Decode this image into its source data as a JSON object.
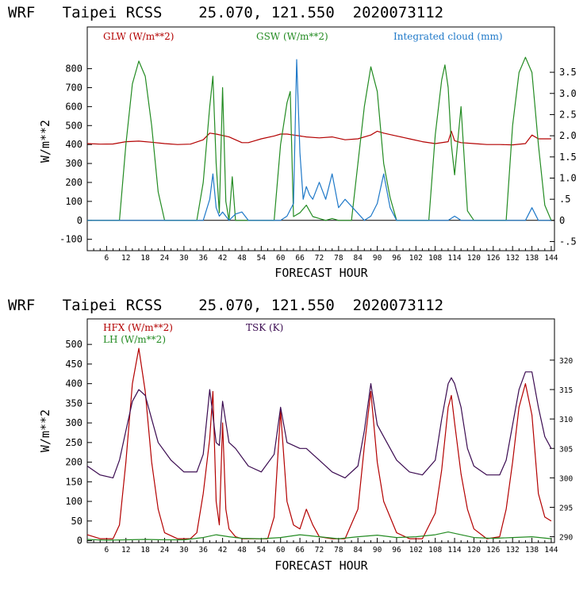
{
  "colors": {
    "glw": "#b30000",
    "gsw": "#238b22",
    "cloud": "#1e78c8",
    "hfx": "#b30000",
    "lh": "#238b22",
    "tsk": "#3a0a50",
    "axis": "#000000"
  },
  "chart_data": [
    {
      "type": "line",
      "title": "WRF   Taipei RCSS    25.070, 121.550  2020073112",
      "xlabel": "FORECAST HOUR",
      "ylabel": "W/m**2",
      "xlim": [
        0,
        145
      ],
      "ylim": [
        -160,
        1020
      ],
      "y2lim": [
        -0.715,
        4.57
      ],
      "xticks": [
        6,
        12,
        18,
        24,
        30,
        36,
        42,
        48,
        54,
        60,
        66,
        72,
        78,
        84,
        90,
        96,
        102,
        108,
        114,
        120,
        126,
        132,
        138,
        144
      ],
      "yticks": [
        -100,
        0,
        100,
        200,
        300,
        400,
        500,
        600,
        700,
        800
      ],
      "y2ticks": [
        -0.5,
        0,
        0.5,
        1.0,
        1.5,
        2.0,
        2.5,
        3.0,
        3.5
      ],
      "y2tick_labels": [
        "-.5",
        "0",
        ".5",
        "1.0",
        "1.5",
        "2.0",
        "2.5",
        "3.0",
        "3.5"
      ],
      "series": [
        {
          "name": "GLW (W/m**2)",
          "axis": "left",
          "color_key": "glw",
          "x": [
            0,
            4,
            8,
            12,
            16,
            20,
            24,
            28,
            32,
            36,
            38,
            40,
            44,
            48,
            50,
            52,
            54,
            58,
            60,
            62,
            64,
            66,
            68,
            72,
            76,
            80,
            84,
            88,
            90,
            92,
            96,
            100,
            104,
            108,
            112,
            113,
            114,
            116,
            120,
            124,
            128,
            132,
            136,
            138,
            140,
            144
          ],
          "values": [
            405,
            402,
            403,
            415,
            418,
            412,
            405,
            400,
            402,
            425,
            460,
            455,
            440,
            410,
            410,
            420,
            430,
            445,
            455,
            455,
            450,
            445,
            440,
            435,
            440,
            425,
            430,
            450,
            470,
            460,
            445,
            430,
            415,
            405,
            415,
            470,
            420,
            410,
            405,
            400,
            400,
            398,
            405,
            450,
            430,
            430
          ]
        },
        {
          "name": "GSW (W/m**2)",
          "axis": "left",
          "color_key": "gsw",
          "x": [
            0,
            10,
            12,
            14,
            16,
            18,
            20,
            22,
            24,
            34,
            36,
            38,
            39,
            40,
            41,
            42,
            43,
            44,
            45,
            46,
            58,
            60,
            62,
            63,
            64,
            66,
            68,
            70,
            72,
            74,
            76,
            78,
            82,
            84,
            86,
            88,
            90,
            92,
            94,
            96,
            106,
            108,
            110,
            111,
            112,
            113,
            114,
            116,
            118,
            120,
            130,
            132,
            134,
            136,
            138,
            140,
            142,
            144
          ],
          "values": [
            0,
            0,
            400,
            720,
            840,
            760,
            500,
            150,
            0,
            0,
            200,
            600,
            760,
            300,
            40,
            700,
            100,
            0,
            230,
            0,
            0,
            400,
            620,
            680,
            20,
            40,
            80,
            20,
            10,
            0,
            10,
            0,
            0,
            300,
            600,
            810,
            680,
            300,
            120,
            0,
            0,
            450,
            740,
            820,
            700,
            400,
            240,
            600,
            50,
            0,
            0,
            500,
            780,
            860,
            780,
            400,
            80,
            0
          ]
        },
        {
          "name": "Integrated cloud (mm)",
          "axis": "right",
          "color_key": "cloud",
          "x": [
            0,
            36,
            38,
            39,
            40,
            41,
            42,
            44,
            46,
            48,
            50,
            52,
            54,
            60,
            62,
            64,
            65,
            66,
            67,
            68,
            69,
            70,
            72,
            74,
            76,
            78,
            80,
            86,
            88,
            90,
            92,
            94,
            96,
            112,
            114,
            116,
            136,
            138,
            140,
            144
          ],
          "values": [
            0,
            0,
            0.5,
            1.1,
            0.3,
            0.1,
            0.2,
            0,
            0.15,
            0.2,
            0,
            0,
            0,
            0,
            0.1,
            0.4,
            3.8,
            1.6,
            0.5,
            0.8,
            0.6,
            0.5,
            0.9,
            0.5,
            1.1,
            0.3,
            0.5,
            0,
            0.1,
            0.4,
            1.1,
            0.3,
            0,
            0,
            0.1,
            0,
            0,
            0.3,
            0,
            0
          ]
        }
      ]
    },
    {
      "type": "line",
      "title": "WRF   Taipei RCSS    25.070, 121.550  2020073112",
      "xlabel": "FORECAST HOUR",
      "ylabel": "W/m**2",
      "xlim": [
        0,
        145
      ],
      "ylim": [
        -5,
        565
      ],
      "y2lim": [
        289,
        327
      ],
      "xticks": [
        6,
        12,
        18,
        24,
        30,
        36,
        42,
        48,
        54,
        60,
        66,
        72,
        78,
        84,
        90,
        96,
        102,
        108,
        114,
        120,
        126,
        132,
        138,
        144
      ],
      "yticks": [
        0,
        50,
        100,
        150,
        200,
        250,
        300,
        350,
        400,
        450,
        500
      ],
      "y2ticks": [
        290,
        295,
        300,
        305,
        310,
        315,
        320
      ],
      "series": [
        {
          "name": "HFX (W/m**2)",
          "axis": "left",
          "color_key": "hfx",
          "x": [
            0,
            4,
            8,
            10,
            12,
            14,
            16,
            18,
            20,
            22,
            24,
            28,
            32,
            34,
            36,
            38,
            39,
            40,
            41,
            42,
            43,
            44,
            46,
            48,
            52,
            56,
            58,
            60,
            62,
            64,
            66,
            68,
            70,
            72,
            76,
            80,
            84,
            86,
            88,
            90,
            92,
            96,
            100,
            104,
            108,
            110,
            112,
            113,
            114,
            116,
            118,
            120,
            124,
            128,
            130,
            132,
            134,
            136,
            138,
            140,
            142,
            144
          ],
          "values": [
            15,
            5,
            5,
            40,
            200,
            400,
            490,
            380,
            200,
            80,
            20,
            5,
            5,
            20,
            120,
            260,
            380,
            100,
            40,
            300,
            80,
            30,
            10,
            5,
            5,
            5,
            60,
            330,
            100,
            40,
            30,
            80,
            40,
            10,
            5,
            5,
            80,
            240,
            380,
            200,
            100,
            20,
            5,
            5,
            70,
            180,
            340,
            370,
            300,
            170,
            80,
            30,
            5,
            10,
            80,
            200,
            340,
            400,
            320,
            120,
            60,
            50
          ]
        },
        {
          "name": "LH (W/m**2)",
          "axis": "left",
          "color_key": "lh",
          "x": [
            0,
            6,
            12,
            18,
            24,
            30,
            36,
            40,
            44,
            48,
            54,
            60,
            66,
            72,
            78,
            84,
            90,
            96,
            102,
            108,
            112,
            116,
            120,
            126,
            132,
            138,
            144
          ],
          "values": [
            3,
            1,
            2,
            3,
            2,
            2,
            8,
            15,
            10,
            6,
            5,
            8,
            15,
            10,
            5,
            10,
            14,
            8,
            10,
            15,
            22,
            15,
            8,
            6,
            8,
            10,
            5
          ]
        },
        {
          "name": "TSK (K)",
          "axis": "right",
          "color_key": "tsk",
          "x": [
            0,
            4,
            8,
            10,
            12,
            14,
            16,
            18,
            20,
            22,
            26,
            30,
            34,
            36,
            38,
            40,
            41,
            42,
            44,
            46,
            50,
            54,
            58,
            60,
            62,
            64,
            66,
            68,
            70,
            72,
            76,
            80,
            84,
            86,
            88,
            90,
            92,
            96,
            100,
            104,
            108,
            110,
            112,
            113,
            114,
            116,
            118,
            120,
            124,
            128,
            130,
            132,
            134,
            136,
            138,
            140,
            142,
            144
          ],
          "values": [
            302,
            300.5,
            300,
            303,
            308,
            313,
            315,
            314,
            310,
            306,
            303,
            301,
            301,
            304,
            315,
            306,
            305.5,
            313,
            306,
            305,
            302,
            301,
            304,
            312,
            306,
            305.5,
            305,
            305,
            304,
            303,
            301,
            300,
            302,
            308,
            316,
            309,
            307,
            303,
            301,
            300.5,
            303,
            310,
            316,
            317,
            316,
            312,
            305,
            302,
            300.5,
            300.5,
            303,
            309,
            315,
            318,
            318,
            312,
            307,
            305
          ]
        }
      ]
    }
  ]
}
